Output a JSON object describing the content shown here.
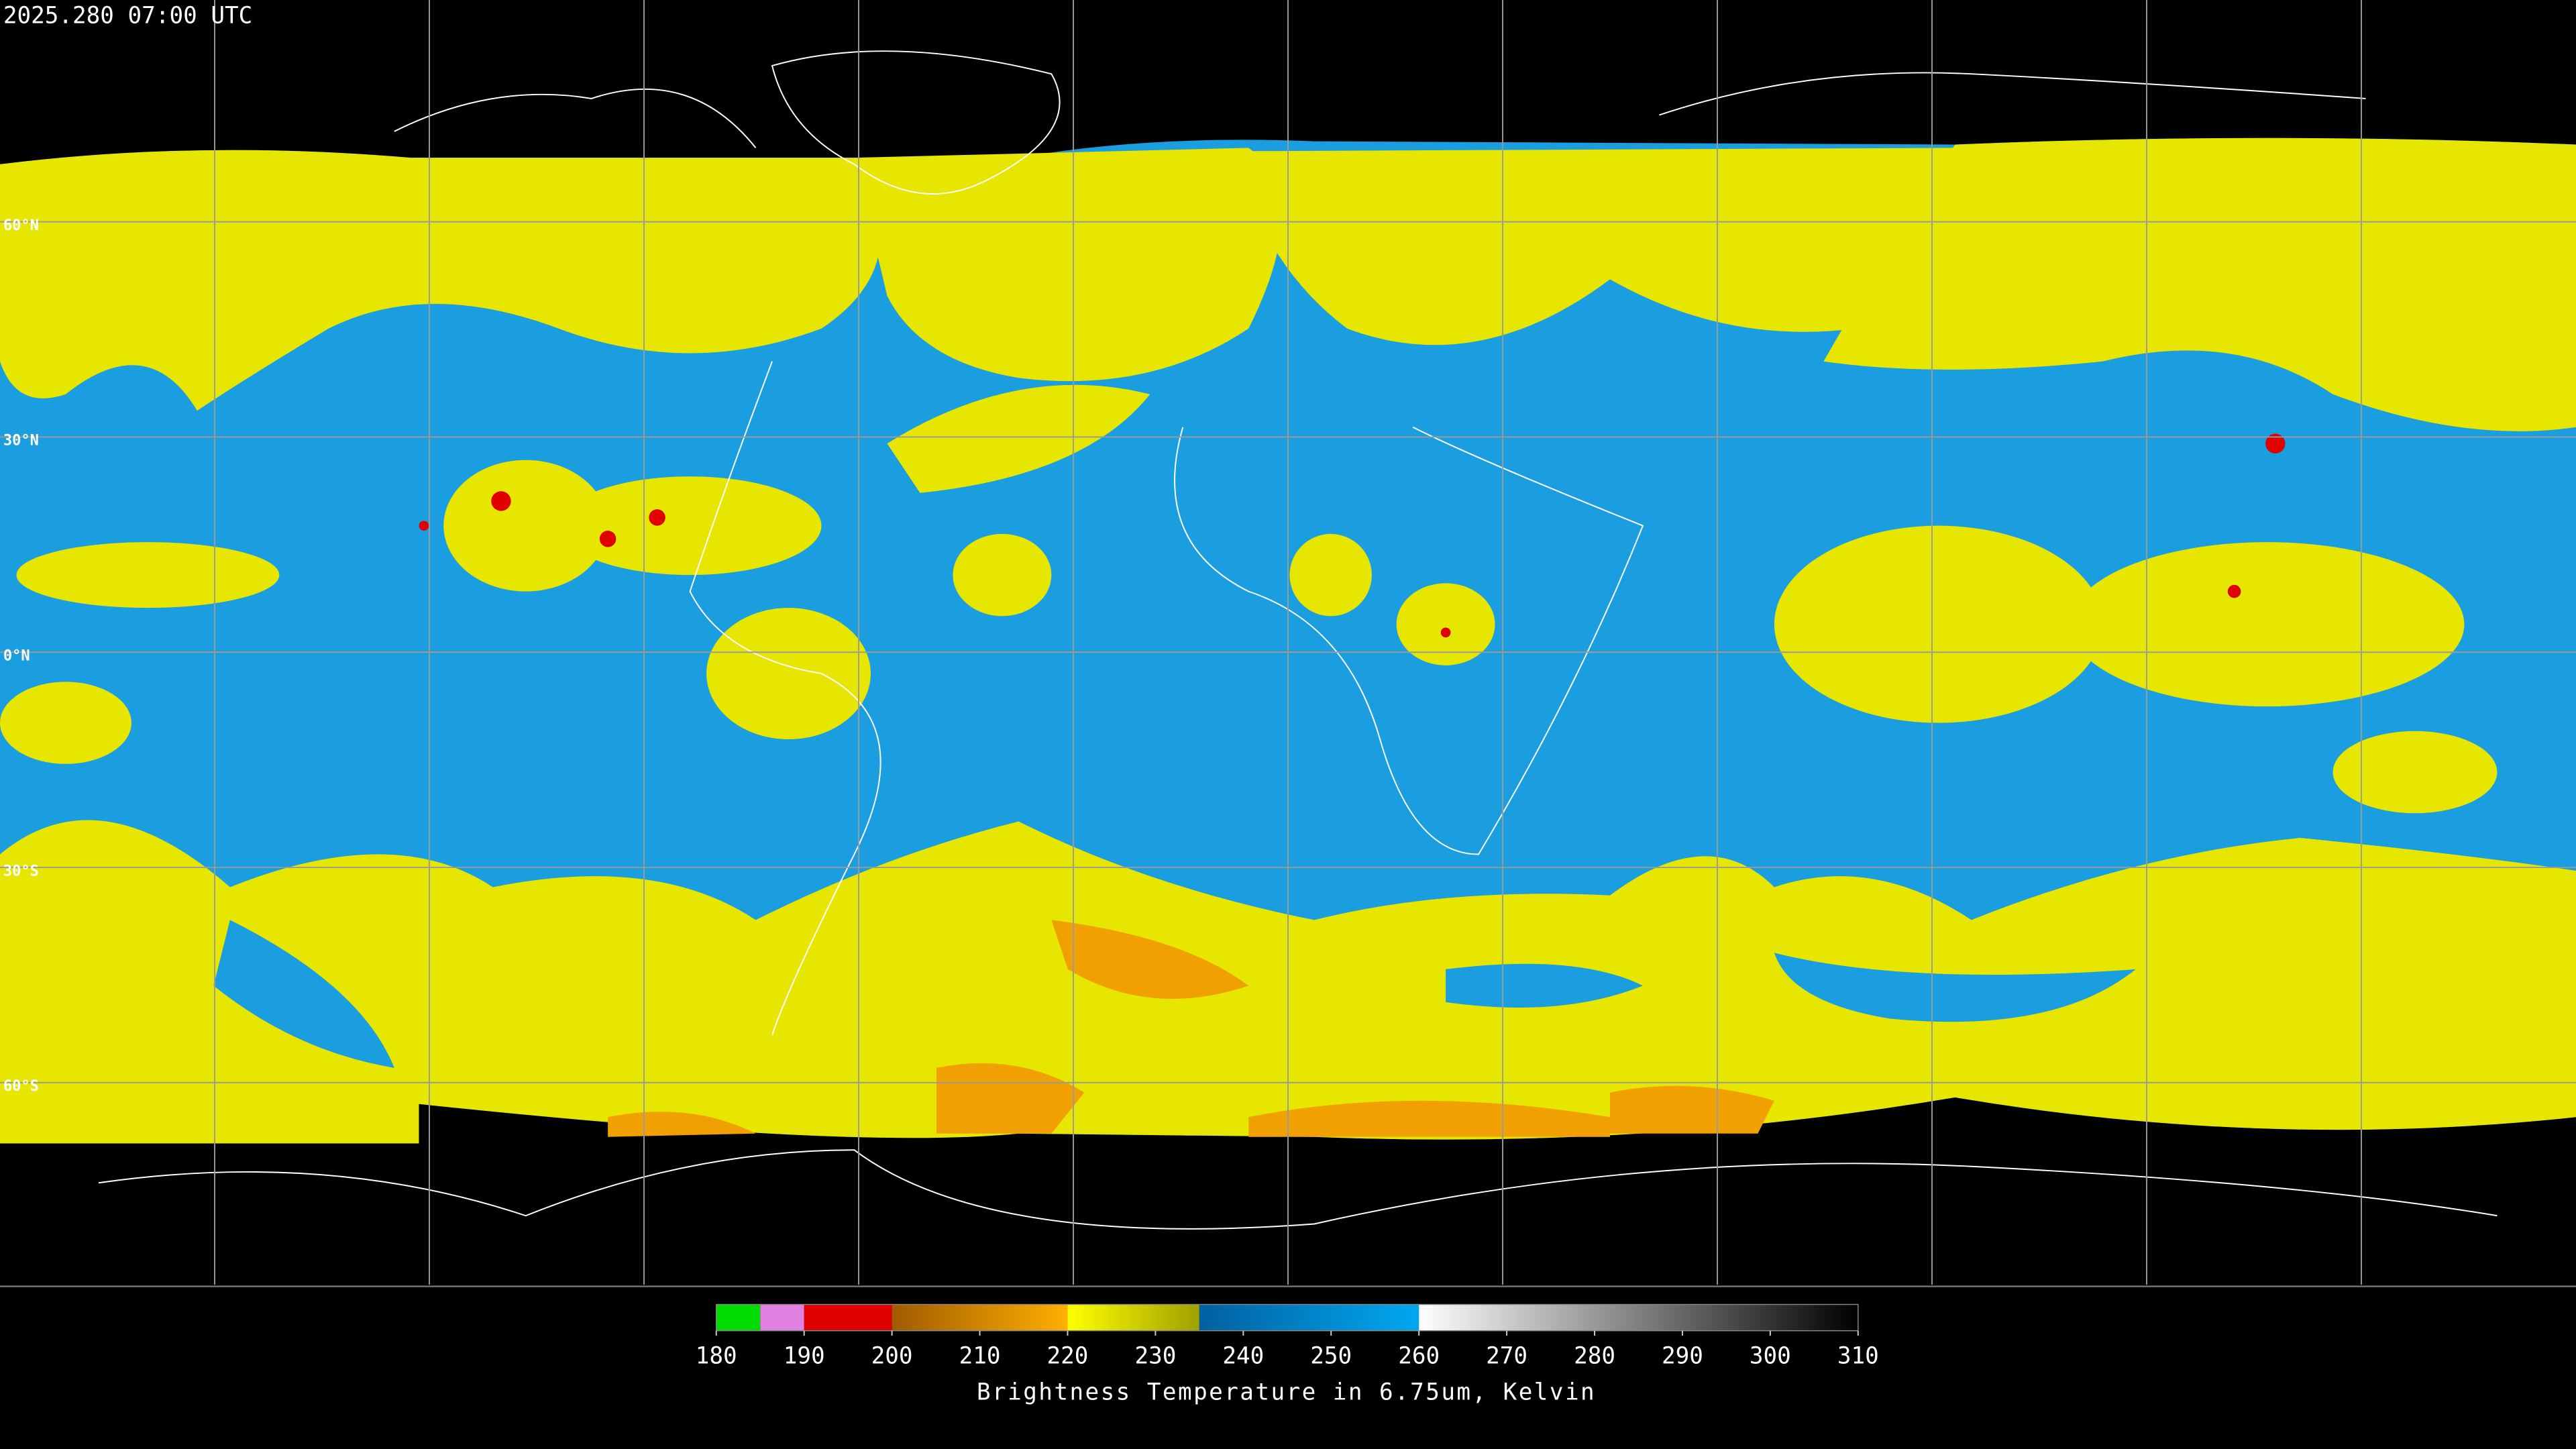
{
  "header": {
    "timestamp": "2025.280 07:00 UTC"
  },
  "map": {
    "latitude_labels": [
      "60°N",
      "30°N",
      "0°N",
      "30°S",
      "60°S"
    ]
  },
  "colorbar": {
    "min": 180,
    "max": 310,
    "ticks": [
      180,
      190,
      200,
      210,
      220,
      230,
      240,
      250,
      260,
      270,
      280,
      290,
      300,
      310
    ],
    "label": "Brightness Temperature in 6.75um, Kelvin",
    "segments": [
      {
        "from": 180,
        "to": 185,
        "colors": [
          "#00dd00",
          "#00dd00"
        ]
      },
      {
        "from": 185,
        "to": 190,
        "colors": [
          "#e080e0",
          "#e080e0"
        ]
      },
      {
        "from": 190,
        "to": 200,
        "colors": [
          "#e00000",
          "#e00000"
        ]
      },
      {
        "from": 200,
        "to": 220,
        "colors": [
          "#a05a00",
          "#ffb000"
        ]
      },
      {
        "from": 220,
        "to": 235,
        "colors": [
          "#ffff00",
          "#a0a000"
        ]
      },
      {
        "from": 235,
        "to": 260,
        "colors": [
          "#0060a0",
          "#00a8f0"
        ]
      },
      {
        "from": 260,
        "to": 310,
        "colors": [
          "#ffffff",
          "#000000"
        ]
      }
    ]
  }
}
